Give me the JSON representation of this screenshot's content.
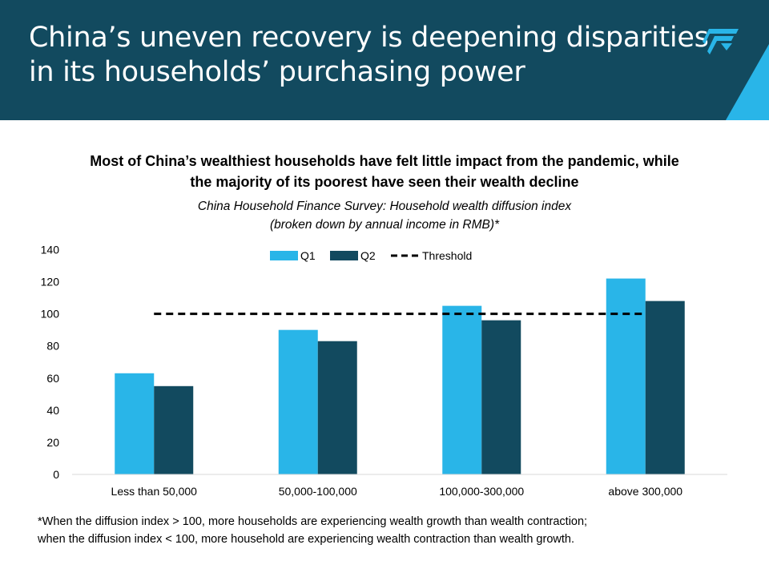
{
  "header": {
    "title_line1": "China’s uneven recovery is deepening disparities",
    "title_line2": "in its households’ purchasing power",
    "logo_icon": "brand-logo-icon"
  },
  "colors": {
    "header_bg": "#124a5f",
    "accent": "#29b5e8",
    "q1": "#29b5e8",
    "q2": "#124a5f",
    "threshold": "#000000"
  },
  "chart_data": {
    "type": "bar",
    "title_line1": "Most of China’s wealthiest households have felt little impact from the pandemic, while",
    "title_line2": "the majority of its poorest have seen their wealth decline",
    "subtitle_line1": "China Household Finance Survey: Household wealth diffusion index",
    "subtitle_line2": "(broken down by annual income in RMB)*",
    "categories": [
      "Less than 50,000",
      "50,000-100,000",
      "100,000-300,000",
      "above 300,000"
    ],
    "series": [
      {
        "name": "Q1",
        "values": [
          63,
          90,
          105,
          122
        ]
      },
      {
        "name": "Q2",
        "values": [
          55,
          83,
          96,
          108
        ]
      }
    ],
    "threshold": {
      "name": "Threshold",
      "value": 100
    },
    "ylim": [
      0,
      140
    ],
    "yticks": [
      0,
      20,
      40,
      60,
      80,
      100,
      120,
      140
    ],
    "grid": false,
    "legend_position": "top-center"
  },
  "footnote": {
    "line1": "*When the diffusion index > 100, more households are experiencing wealth growth than wealth contraction;",
    "line2": "when the diffusion index < 100, more household are experiencing wealth contraction than wealth growth."
  }
}
